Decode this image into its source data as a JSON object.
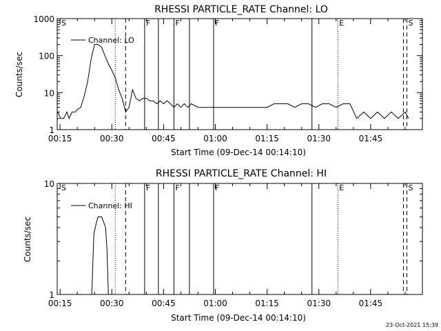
{
  "footer_text": "23-Oct-2021 15:39",
  "chart_data": [
    {
      "type": "line",
      "title": "RHESSI PARTICLE_RATE Channel: LO",
      "xlabel": "Start Time (09-Dec-14 00:14:10)",
      "ylabel": "Counts/sec",
      "yscale": "log",
      "ylim": [
        1,
        1000
      ],
      "xlim_min": [
        14.17,
        120
      ],
      "x_tick_labels": [
        "00:15",
        "00:30",
        "00:45",
        "01:00",
        "01:15",
        "01:30",
        "01:45"
      ],
      "x_tick_values_min": [
        15,
        30,
        45,
        60,
        75,
        90,
        105
      ],
      "y_tick_labels": [
        "1",
        "10",
        "100",
        "1000"
      ],
      "y_tick_values": [
        1,
        10,
        100,
        1000
      ],
      "legend": "Channel: LO",
      "legend_position": "top-left",
      "markers": [
        {
          "label": "S",
          "x_min": 15.0,
          "style": "none"
        },
        {
          "label": "",
          "x_min": 31.0,
          "style": "dotted"
        },
        {
          "label": "",
          "x_min": 34.0,
          "style": "dashed"
        },
        {
          "label": "F",
          "x_min": 39.5,
          "style": "solid"
        },
        {
          "label": "",
          "x_min": 43.5,
          "style": "solid"
        },
        {
          "label": "F",
          "x_min": 48.0,
          "style": "solid"
        },
        {
          "label": "",
          "x_min": 52.5,
          "style": "solid"
        },
        {
          "label": "F",
          "x_min": 59.5,
          "style": "solid"
        },
        {
          "label": "",
          "x_min": 88.0,
          "style": "solid"
        },
        {
          "label": "E",
          "x_min": 95.5,
          "style": "dotted"
        },
        {
          "label": "",
          "x_min": 114.5,
          "style": "dashed"
        },
        {
          "label": "S",
          "x_min": 115.5,
          "style": "dashed"
        }
      ],
      "series": [
        {
          "x": [
            14.3,
            15.2,
            16,
            17,
            17.6,
            18.5,
            19.5,
            20,
            21,
            22,
            23,
            24,
            25,
            26,
            27,
            28,
            29,
            30,
            31,
            32,
            33,
            34,
            35,
            36,
            37,
            38,
            39,
            40,
            41,
            42,
            43,
            44,
            45,
            46,
            47,
            48,
            49,
            50,
            51,
            52,
            53,
            55,
            57,
            59,
            61,
            63,
            65,
            67,
            69,
            71,
            73,
            75,
            77,
            79,
            81,
            83,
            85,
            87,
            89,
            91,
            93,
            95,
            97,
            99,
            101,
            103,
            105,
            107,
            109,
            111,
            113,
            115,
            116
          ],
          "y": [
            3,
            2,
            2,
            3,
            2,
            3,
            3,
            3.5,
            4,
            8,
            20,
            80,
            200,
            200,
            170,
            100,
            60,
            40,
            25,
            12,
            7,
            3,
            4,
            12,
            7,
            6,
            7,
            7,
            6,
            6,
            5,
            6,
            5,
            6,
            5,
            4,
            5,
            4,
            5,
            4,
            5,
            4,
            4,
            4,
            4,
            4,
            4,
            4,
            4,
            4,
            4,
            4,
            5,
            5,
            5,
            4,
            5,
            5,
            4,
            5,
            5,
            4,
            5,
            5,
            2,
            3,
            2,
            3,
            2,
            3,
            2,
            3,
            2
          ]
        }
      ]
    },
    {
      "type": "line",
      "title": "RHESSI PARTICLE_RATE Channel: HI",
      "xlabel": "Start Time (09-Dec-14 00:14:10)",
      "ylabel": "Counts/sec",
      "yscale": "log",
      "ylim": [
        1,
        10
      ],
      "xlim_min": [
        14.17,
        120
      ],
      "x_tick_labels": [
        "00:15",
        "00:30",
        "00:45",
        "01:00",
        "01:15",
        "01:30",
        "01:45"
      ],
      "x_tick_values_min": [
        15,
        30,
        45,
        60,
        75,
        90,
        105
      ],
      "y_tick_labels": [
        "1",
        "10"
      ],
      "y_tick_values": [
        1,
        10
      ],
      "legend": "Channel: HI",
      "legend_position": "top-left",
      "markers": [
        {
          "label": "S",
          "x_min": 15.0,
          "style": "none"
        },
        {
          "label": "",
          "x_min": 31.0,
          "style": "dotted"
        },
        {
          "label": "",
          "x_min": 34.0,
          "style": "dashed"
        },
        {
          "label": "F",
          "x_min": 39.5,
          "style": "solid"
        },
        {
          "label": "",
          "x_min": 43.5,
          "style": "solid"
        },
        {
          "label": "F",
          "x_min": 48.0,
          "style": "solid"
        },
        {
          "label": "",
          "x_min": 52.5,
          "style": "solid"
        },
        {
          "label": "F",
          "x_min": 59.5,
          "style": "solid"
        },
        {
          "label": "",
          "x_min": 88.0,
          "style": "solid"
        },
        {
          "label": "E",
          "x_min": 95.5,
          "style": "dotted"
        },
        {
          "label": "",
          "x_min": 114.5,
          "style": "dashed"
        },
        {
          "label": "S",
          "x_min": 115.5,
          "style": "dashed"
        }
      ],
      "series": [
        {
          "x": [
            24.2,
            24.8,
            25.2,
            25.6,
            26.0,
            26.4,
            27.0,
            27.6,
            28.2,
            28.6,
            29.0
          ],
          "y": [
            1,
            3.5,
            4,
            4.5,
            5,
            5,
            5,
            4.5,
            4,
            2.5,
            1
          ]
        }
      ]
    }
  ]
}
